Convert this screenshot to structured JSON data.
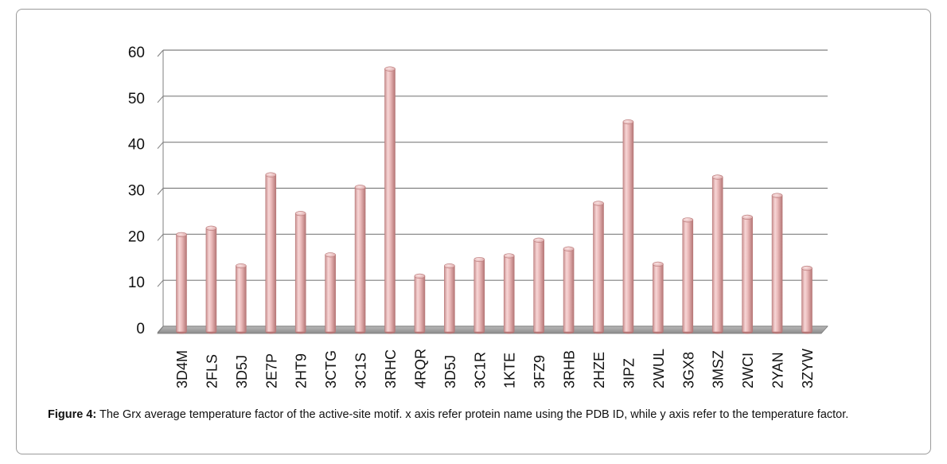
{
  "caption": {
    "label": "Figure 4:",
    "text": " The Grx average temperature factor of the active-site motif. x axis refer protein name using the PDB ID, while y axis refer to the temperature factor."
  },
  "colors": {
    "bar_fill": "#e8b4b4",
    "bar_edge": "#b97a7a",
    "grid": "#7f7f7f",
    "floor": "#a6a6a6"
  },
  "chart_data": {
    "type": "bar",
    "categories": [
      "3D4M",
      "2FLS",
      "3D5J",
      "2E7P",
      "2HT9",
      "3CTG",
      "3C1S",
      "3RHC",
      "4RQR",
      "3D5J",
      "3C1R",
      "1KTE",
      "3FZ9",
      "3RHB",
      "2HZE",
      "3IPZ",
      "2WUL",
      "3GX8",
      "3MSZ",
      "2WCI",
      "2YAN",
      "3ZYW"
    ],
    "values": [
      21.3,
      22.7,
      14.5,
      34.3,
      25.9,
      16.9,
      31.6,
      57.3,
      12.3,
      14.5,
      15.9,
      16.7,
      20.1,
      18.2,
      28.1,
      45.8,
      14.9,
      24.5,
      33.8,
      25.1,
      29.8,
      14.0
    ],
    "yticks": [
      0,
      10,
      20,
      30,
      40,
      50,
      60
    ],
    "ylim": [
      0,
      60
    ],
    "grid": true,
    "legend": "none",
    "style": "3d-cylinder"
  }
}
